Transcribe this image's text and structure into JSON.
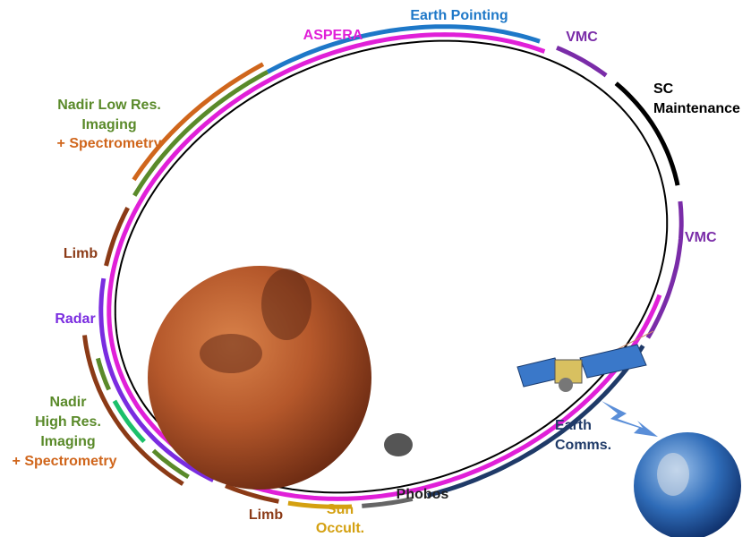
{
  "labels": {
    "aspera": "ASPERA",
    "earth_pointing": "Earth Pointing",
    "vmc_top": "VMC",
    "sc_maintenance": [
      "SC",
      "Maintenance"
    ],
    "vmc_right": "VMC",
    "earth_comms": [
      "Earth",
      "Comms."
    ],
    "phobos": "Phobos",
    "sun_occult": [
      "Sun",
      "Occult."
    ],
    "limb_bottom": "Limb",
    "nadir_high": [
      "Nadir",
      "High Res.",
      "Imaging"
    ],
    "nadir_high_spectrometry": "+ Spectrometry",
    "radar": "Radar",
    "limb_left": "Limb",
    "nadir_low": [
      "Nadir Low Res.",
      "Imaging"
    ],
    "nadir_low_spectrometry": "+ Spectrometry"
  }
}
